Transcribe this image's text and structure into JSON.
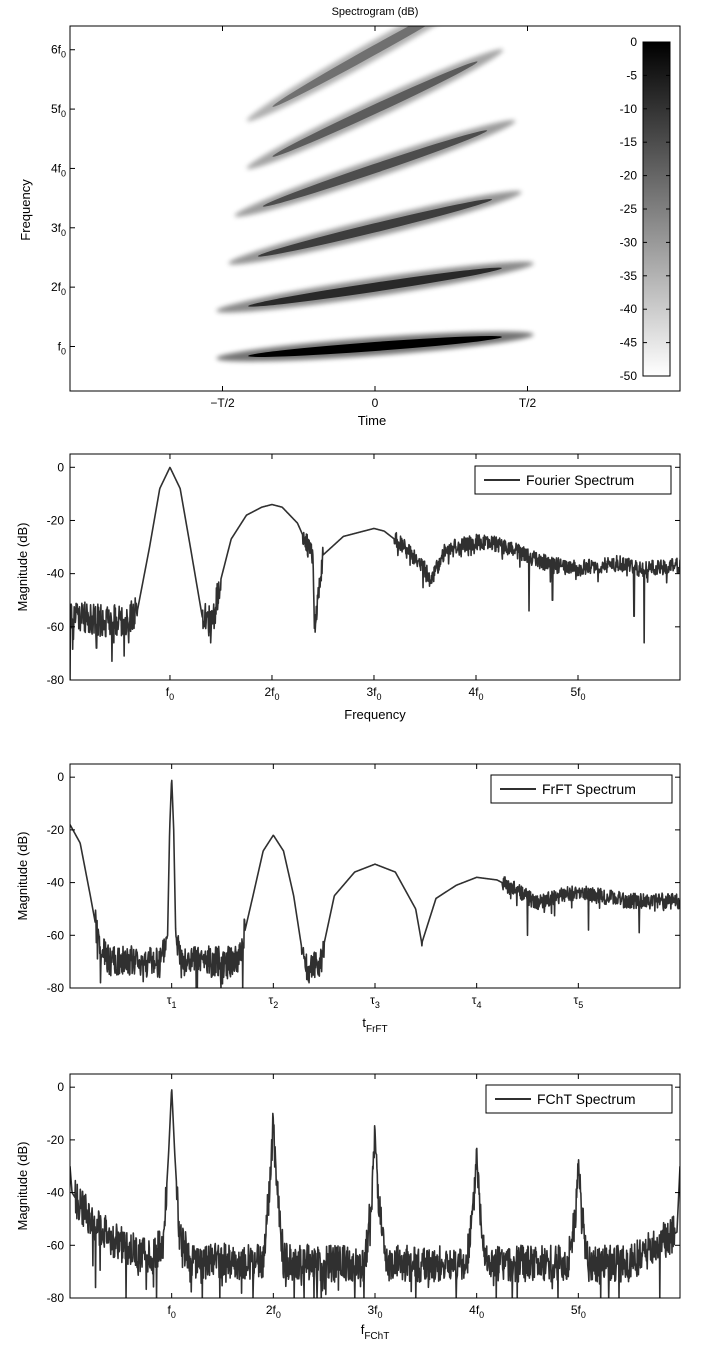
{
  "chart_data": [
    {
      "type": "heatmap",
      "title": "Spectrogram (dB)",
      "xlabel": "Time",
      "ylabel": "Frequency",
      "x_ticks": [
        "−T/2",
        "0",
        "T/2"
      ],
      "y_ticks": [
        {
          "base": "f",
          "sub": "0"
        },
        {
          "base": "2f",
          "sub": "0"
        },
        {
          "base": "3f",
          "sub": "0"
        },
        {
          "base": "4f",
          "sub": "0"
        },
        {
          "base": "5f",
          "sub": "0"
        },
        {
          "base": "6f",
          "sub": "0"
        }
      ],
      "xlim": [
        -1,
        1
      ],
      "ylim": [
        0.25,
        6.4
      ],
      "colorbar": {
        "ticks": [
          "0",
          "-5",
          "-10",
          "-15",
          "-20",
          "-25",
          "-30",
          "-35",
          "-40",
          "-45",
          "-50"
        ],
        "range": [
          -50,
          0
        ],
        "colormap": "gray-reversed"
      },
      "harmonics": [
        {
          "harmonic": 1,
          "t_start": -0.52,
          "t_end": 0.52,
          "f_start": 0.8,
          "f_end": 1.2,
          "peak_db": 0
        },
        {
          "harmonic": 2,
          "t_start": -0.52,
          "t_end": 0.52,
          "f_start": 1.6,
          "f_end": 2.4,
          "peak_db": -8
        },
        {
          "harmonic": 3,
          "t_start": -0.48,
          "t_end": 0.48,
          "f_start": 2.4,
          "f_end": 3.6,
          "peak_db": -12
        },
        {
          "harmonic": 4,
          "t_start": -0.46,
          "t_end": 0.46,
          "f_start": 3.2,
          "f_end": 4.8,
          "peak_db": -15
        },
        {
          "harmonic": 5,
          "t_start": -0.42,
          "t_end": 0.42,
          "f_start": 4.0,
          "f_end": 6.0,
          "peak_db": -18
        },
        {
          "harmonic": 6,
          "t_start": -0.42,
          "t_end": 0.42,
          "f_start": 4.8,
          "f_end": 7.2,
          "peak_db": -22
        }
      ]
    },
    {
      "type": "line",
      "xlabel": "Frequency",
      "ylabel": "Magnitude (dB)",
      "ylim": [
        -80,
        5
      ],
      "xlim": [
        0.02,
        6
      ],
      "y_ticks": [
        0,
        -20,
        -40,
        -60,
        -80
      ],
      "x_ticks": [
        {
          "base": "f",
          "sub": "0",
          "value": 1
        },
        {
          "base": "2f",
          "sub": "0",
          "value": 2
        },
        {
          "base": "3f",
          "sub": "0",
          "value": 3
        },
        {
          "base": "4f",
          "sub": "0",
          "value": 4
        },
        {
          "base": "5f",
          "sub": "0",
          "value": 5
        }
      ],
      "series": [
        {
          "name": "Fourier Spectrum",
          "x": [
            0.02,
            0.2,
            0.4,
            0.6,
            0.68,
            0.8,
            0.9,
            1.0,
            1.1,
            1.2,
            1.32,
            1.42,
            1.5,
            1.6,
            1.75,
            1.9,
            2.0,
            2.1,
            2.25,
            2.4,
            2.42,
            2.5,
            2.7,
            2.9,
            3.0,
            3.1,
            3.3,
            3.5,
            3.55,
            3.7,
            3.9,
            4.0,
            4.2,
            4.4,
            4.6,
            4.8,
            5.0,
            5.2,
            5.4,
            5.6,
            5.8,
            6.0
          ],
          "y": [
            -55,
            -57,
            -58,
            -57,
            -54,
            -30,
            -8,
            0,
            -8,
            -30,
            -57,
            -58,
            -42,
            -27,
            -18,
            -15,
            -14,
            -15,
            -21,
            -34,
            -60,
            -33,
            -26,
            -24,
            -23,
            -24,
            -30,
            -38,
            -43,
            -31,
            -29,
            -28,
            -29,
            -31,
            -35,
            -37,
            -38,
            -37,
            -36,
            -38,
            -38,
            -37
          ],
          "noise": [
            {
              "x0": 0.02,
              "x1": 0.68,
              "amp": 6
            },
            {
              "x0": 1.32,
              "x1": 1.5,
              "amp": 6
            },
            {
              "x0": 2.3,
              "x1": 2.5,
              "amp": 4
            },
            {
              "x0": 3.2,
              "x1": 6.0,
              "amp": 3
            }
          ],
          "dips": [
            {
              "x": 0.02,
              "y": -80
            },
            {
              "x": 0.28,
              "y": -68
            },
            {
              "x": 0.45,
              "y": -66
            },
            {
              "x": 1.4,
              "y": -66
            },
            {
              "x": 3.51,
              "y": -43
            },
            {
              "x": 4.52,
              "y": -54
            },
            {
              "x": 4.75,
              "y": -50
            },
            {
              "x": 5.55,
              "y": -56
            },
            {
              "x": 5.65,
              "y": -66
            }
          ]
        }
      ]
    },
    {
      "type": "line",
      "xlabel": {
        "base": "t",
        "sub": "FrFT"
      },
      "ylabel": "Magnitude (dB)",
      "ylim": [
        -80,
        5
      ],
      "xlim": [
        0,
        6
      ],
      "y_ticks": [
        0,
        -20,
        -40,
        -60,
        -80
      ],
      "x_ticks": [
        {
          "base": "τ",
          "sub": "1",
          "value": 1
        },
        {
          "base": "τ",
          "sub": "2",
          "value": 2
        },
        {
          "base": "τ",
          "sub": "3",
          "value": 3
        },
        {
          "base": "τ",
          "sub": "4",
          "value": 4
        },
        {
          "base": "τ",
          "sub": "5",
          "value": 5
        }
      ],
      "series": [
        {
          "name": "FrFT Spectrum",
          "x": [
            0.0,
            0.1,
            0.2,
            0.3,
            0.4,
            0.6,
            0.9,
            0.96,
            0.98,
            1.0,
            1.02,
            1.04,
            1.1,
            1.4,
            1.65,
            1.8,
            1.9,
            2.0,
            2.1,
            2.2,
            2.3,
            2.45,
            2.6,
            2.8,
            3.0,
            3.2,
            3.4,
            3.46,
            3.6,
            3.8,
            4.0,
            4.2,
            4.4,
            4.6,
            4.8,
            5.0,
            5.2,
            5.5,
            6.0
          ],
          "y": [
            -18,
            -25,
            -45,
            -66,
            -70,
            -70,
            -70,
            -60,
            -20,
            0,
            -20,
            -60,
            -70,
            -70,
            -70,
            -45,
            -28,
            -22,
            -28,
            -45,
            -70,
            -72,
            -45,
            -36,
            -33,
            -36,
            -50,
            -63,
            -46,
            -41,
            -38,
            -39,
            -43,
            -48,
            -45,
            -44,
            -45,
            -47,
            -47
          ],
          "noise": [
            {
              "x0": 0.25,
              "x1": 0.95,
              "amp": 6
            },
            {
              "x0": 1.05,
              "x1": 1.72,
              "amp": 6
            },
            {
              "x0": 2.28,
              "x1": 2.5,
              "amp": 5
            },
            {
              "x0": 4.25,
              "x1": 6.0,
              "amp": 3
            }
          ],
          "dips": [
            {
              "x": 0.3,
              "y": -78
            },
            {
              "x": 0.88,
              "y": -76
            },
            {
              "x": 1.7,
              "y": -80
            },
            {
              "x": 2.35,
              "y": -78
            },
            {
              "x": 3.46,
              "y": -64
            },
            {
              "x": 4.5,
              "y": -60
            },
            {
              "x": 5.1,
              "y": -58
            },
            {
              "x": 5.6,
              "y": -59
            }
          ]
        }
      ]
    },
    {
      "type": "line",
      "xlabel": {
        "base": "f",
        "sub": "FChT"
      },
      "ylabel": "Magnitude (dB)",
      "ylim": [
        -80,
        5
      ],
      "xlim": [
        0,
        6
      ],
      "y_ticks": [
        0,
        -20,
        -40,
        -60,
        -80
      ],
      "x_ticks": [
        {
          "base": "f",
          "sub": "0",
          "value": 1
        },
        {
          "base": "2f",
          "sub": "0",
          "value": 2
        },
        {
          "base": "3f",
          "sub": "0",
          "value": 3
        },
        {
          "base": "4f",
          "sub": "0",
          "value": 4
        },
        {
          "base": "5f",
          "sub": "0",
          "value": 5
        }
      ],
      "series": [
        {
          "name": "FChT Spectrum",
          "x": [
            0.0,
            0.02,
            0.1,
            0.2,
            0.3,
            0.4,
            0.6,
            0.8,
            0.92,
            0.97,
            1.0,
            1.03,
            1.08,
            1.2,
            1.5,
            1.9,
            1.97,
            2.0,
            2.03,
            2.1,
            2.5,
            2.9,
            2.97,
            3.0,
            3.03,
            3.1,
            3.5,
            3.9,
            3.97,
            4.0,
            4.03,
            4.1,
            4.5,
            4.9,
            4.97,
            5.0,
            5.03,
            5.1,
            5.5,
            5.97,
            6.0
          ],
          "y": [
            -30,
            -40,
            -45,
            -50,
            -54,
            -57,
            -62,
            -65,
            -58,
            -25,
            0,
            -25,
            -58,
            -66,
            -66,
            -66,
            -35,
            -12,
            -35,
            -66,
            -67,
            -67,
            -40,
            -19,
            -40,
            -67,
            -67,
            -67,
            -45,
            -23,
            -45,
            -67,
            -67,
            -67,
            -48,
            -27,
            -48,
            -67,
            -67,
            -55,
            -30
          ],
          "noise": [
            {
              "x0": 0.05,
              "x1": 0.95,
              "amp": 7
            },
            {
              "x0": 1.05,
              "x1": 5.95,
              "amp": 7
            }
          ],
          "dips": [
            {
              "x": 0.25,
              "y": -76
            },
            {
              "x": 0.55,
              "y": -80
            },
            {
              "x": 0.85,
              "y": -80
            },
            {
              "x": 1.3,
              "y": -80
            },
            {
              "x": 1.8,
              "y": -80
            },
            {
              "x": 2.4,
              "y": -80
            },
            {
              "x": 2.8,
              "y": -80
            },
            {
              "x": 3.4,
              "y": -80
            },
            {
              "x": 3.8,
              "y": -80
            },
            {
              "x": 4.4,
              "y": -80
            },
            {
              "x": 4.8,
              "y": -80
            },
            {
              "x": 5.4,
              "y": -80
            },
            {
              "x": 5.8,
              "y": -80
            }
          ]
        }
      ]
    }
  ]
}
